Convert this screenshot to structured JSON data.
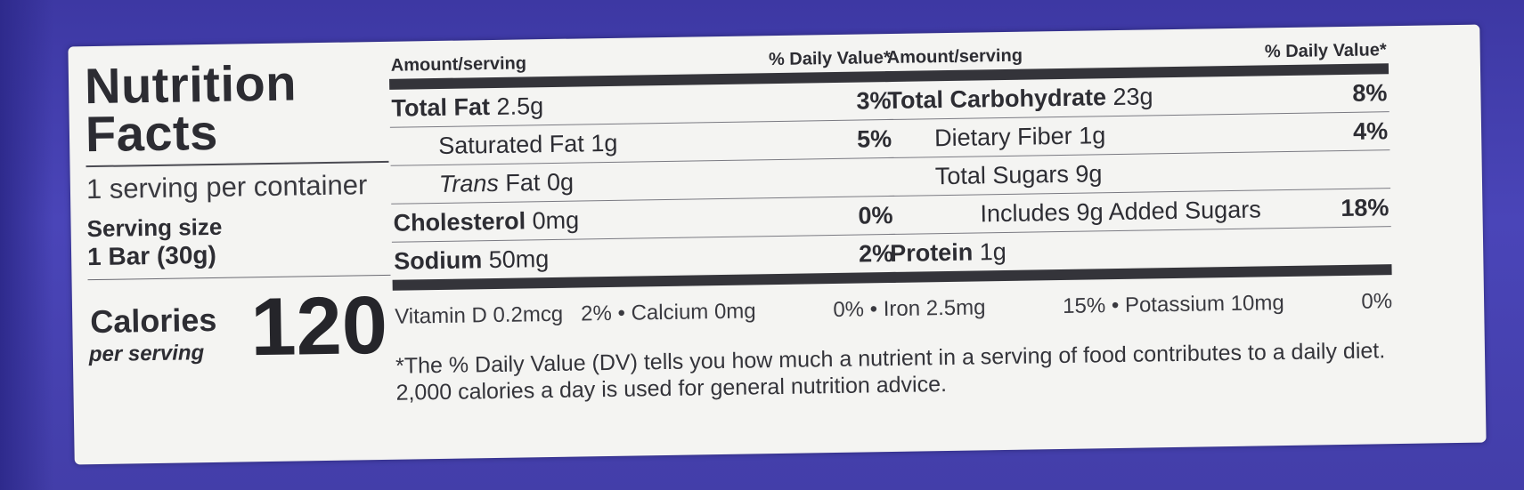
{
  "label": {
    "title_line1": "Nutrition",
    "title_line2": "Facts",
    "servings_per_container": "1 serving per container",
    "serving_size_label": "Serving size",
    "serving_size_value": "1 Bar (30g)",
    "calories_label": "Calories",
    "calories_sub": "per serving",
    "calories_value": "120"
  },
  "left_table": {
    "header_left": "Amount/serving",
    "header_right": "% Daily Value*",
    "rows": [
      {
        "name": "Total Fat",
        "amount": "2.5g",
        "dv": "3%"
      },
      {
        "name": "Saturated Fat",
        "amount": "1g",
        "dv": "5%"
      },
      {
        "name_italic": "Trans",
        "name": "Fat",
        "amount": "0g",
        "dv": ""
      },
      {
        "name": "Cholesterol",
        "amount": "0mg",
        "dv": "0%"
      },
      {
        "name": "Sodium",
        "amount": "50mg",
        "dv": "2%"
      }
    ]
  },
  "right_table": {
    "header_left": "Amount/serving",
    "header_right": "% Daily Value*",
    "rows": [
      {
        "name": "Total Carbohydrate",
        "amount": "23g",
        "dv": "8%"
      },
      {
        "name": "Dietary Fiber",
        "amount": "1g",
        "dv": "4%"
      },
      {
        "name": "Total Sugars",
        "amount": "9g",
        "dv": ""
      },
      {
        "name": "Includes 9g Added Sugars",
        "amount": "",
        "dv": "18%"
      },
      {
        "name": "Protein",
        "amount": "1g",
        "dv": ""
      }
    ]
  },
  "vitamins": [
    {
      "text": "Vitamin D 0.2mcg",
      "dv": "2%"
    },
    {
      "text": "Calcium 0mg",
      "dv": "0%"
    },
    {
      "text": "Iron 2.5mg",
      "dv": "15%"
    },
    {
      "text": "Potassium 10mg",
      "dv": "0%"
    }
  ],
  "separator": "•",
  "footnote": "*The % Daily Value (DV) tells you how much a nutrient in a serving of food contributes to a daily diet. 2,000 calories a day is used for general nutrition advice.",
  "colors": {
    "package_purple": "#4540ad",
    "label_white": "#f4f4f2",
    "ink": "#2d2d33"
  }
}
